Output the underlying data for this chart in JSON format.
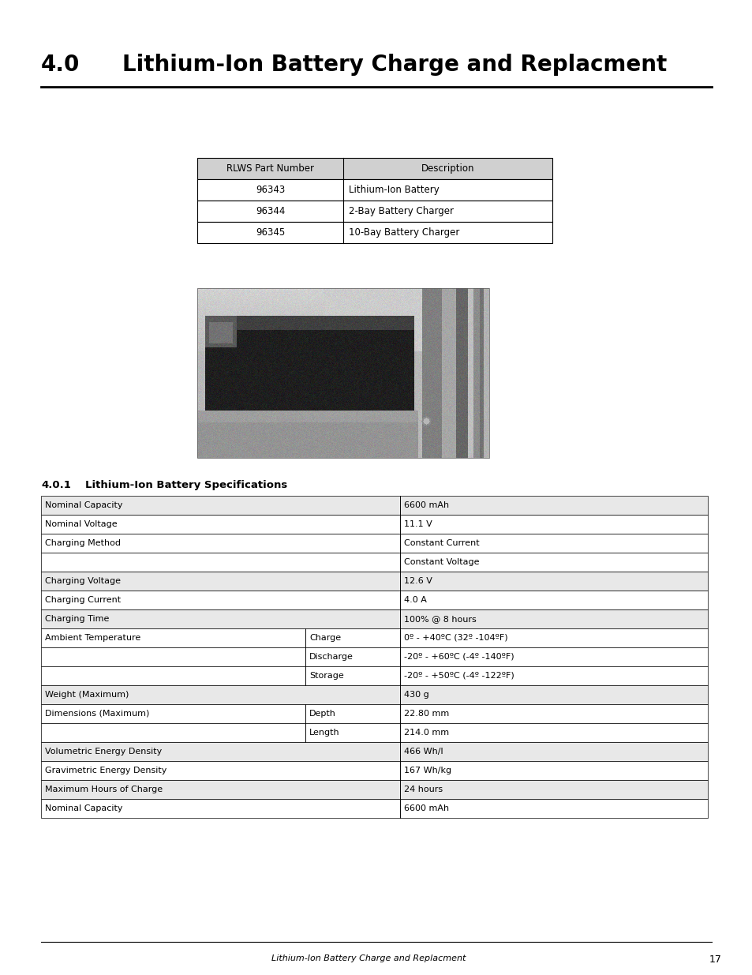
{
  "title_num": "4.0",
  "title_text": "Lithium-Ion Battery Charge and Replacment",
  "bg_color": "#ffffff",
  "header_bg": "#d0d0d0",
  "table1_headers": [
    "RLWS Part Number",
    "Description"
  ],
  "table1_rows": [
    [
      "96343",
      "Lithium-Ion Battery"
    ],
    [
      "96344",
      "2-Bay Battery Charger"
    ],
    [
      "96345",
      "10-Bay Battery Charger"
    ]
  ],
  "table2_rows": [
    [
      "Nominal Capacity",
      "",
      "6600 mAh"
    ],
    [
      "Nominal Voltage",
      "",
      "11.1 V"
    ],
    [
      "Charging Method",
      "",
      "Constant Current"
    ],
    [
      "",
      "",
      "Constant Voltage"
    ],
    [
      "Charging Voltage",
      "",
      "12.6 V"
    ],
    [
      "Charging Current",
      "",
      "4.0 A"
    ],
    [
      "Charging Time",
      "",
      "100% @ 8 hours"
    ],
    [
      "Ambient Temperature",
      "Charge",
      "0º - +40ºC (32º -104ºF)"
    ],
    [
      "",
      "Discharge",
      "-20º - +60ºC (-4º -140ºF)"
    ],
    [
      "",
      "Storage",
      "-20º - +50ºC (-4º -122ºF)"
    ],
    [
      "Weight (Maximum)",
      "",
      "430 g"
    ],
    [
      "Dimensions (Maximum)",
      "Depth",
      "22.80 mm"
    ],
    [
      "",
      "Length",
      "214.0 mm"
    ],
    [
      "Volumetric Energy Density",
      "",
      "466 Wh/l"
    ],
    [
      "Gravimetric Energy Density",
      "",
      "167 Wh/kg"
    ],
    [
      "Maximum Hours of Charge",
      "",
      "24 hours"
    ],
    [
      "Nominal Capacity",
      "",
      "6600 mAh"
    ]
  ],
  "row_bg": [
    "#e8e8e8",
    "#ffffff",
    "#ffffff",
    "#ffffff",
    "#e8e8e8",
    "#ffffff",
    "#e8e8e8",
    "#ffffff",
    "#ffffff",
    "#ffffff",
    "#e8e8e8",
    "#ffffff",
    "#ffffff",
    "#e8e8e8",
    "#ffffff",
    "#e8e8e8",
    "#ffffff"
  ],
  "footer_text": "Lithium-Ion Battery Charge and Replacment",
  "footer_page": "17",
  "text_color": "#000000"
}
